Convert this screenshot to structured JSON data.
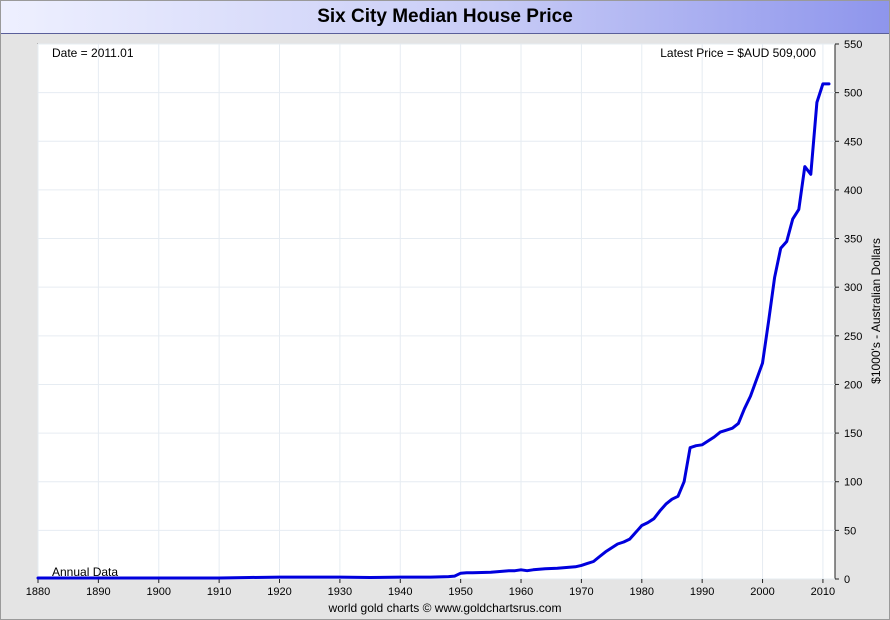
{
  "title": "Six City Median House Price",
  "footer": "world gold charts © www.goldchartsrus.com",
  "chart_data": {
    "type": "line",
    "title": "Six City Median House Price",
    "ylabel": "$1000's - Australian Dollars",
    "xlabel": "",
    "xlim": [
      1880,
      2012
    ],
    "ylim": [
      0,
      550
    ],
    "x_ticks": [
      "1880",
      "1890",
      "1900",
      "1910",
      "1920",
      "1930",
      "1940",
      "1950",
      "1960",
      "1970",
      "1980",
      "1990",
      "2000",
      "2010"
    ],
    "y_ticks": [
      "0",
      "50",
      "100",
      "150",
      "200",
      "250",
      "300",
      "350",
      "400",
      "450",
      "500",
      "550"
    ],
    "annotations": {
      "date": "Date = 2011.01",
      "latest_price": "Latest Price = $AUD 509,000",
      "frequency": "Annual Data"
    },
    "grid": true,
    "line_color": "#0000dd",
    "series": [
      {
        "x": [
          1880,
          1885,
          1890,
          1895,
          1900,
          1905,
          1910,
          1915,
          1920,
          1925,
          1930,
          1935,
          1940,
          1945,
          1948,
          1949,
          1950,
          1951,
          1952,
          1955,
          1957,
          1958,
          1959,
          1960,
          1961,
          1962,
          1963,
          1964,
          1966,
          1968,
          1969,
          1970,
          1971,
          1972,
          1973,
          1974,
          1975,
          1976,
          1977,
          1978,
          1979,
          1980,
          1981,
          1982,
          1983,
          1984,
          1985,
          1986,
          1987,
          1988,
          1989,
          1990,
          1991,
          1992,
          1993,
          1994,
          1995,
          1996,
          1997,
          1998,
          1999,
          2000,
          2001,
          2002,
          2003,
          2004,
          2005,
          2006,
          2007,
          2008,
          2009,
          2010,
          2011
        ],
        "y": [
          1,
          1,
          1,
          1,
          1,
          1,
          1,
          1.5,
          2,
          2,
          2,
          1.5,
          2,
          2,
          2.5,
          3,
          6,
          6.5,
          6.5,
          7,
          8,
          8.5,
          8.5,
          9.5,
          8.5,
          9.5,
          10,
          10.5,
          11,
          12,
          12.5,
          14,
          16,
          18,
          23,
          28,
          32,
          36,
          38,
          41,
          48,
          55,
          58,
          62,
          70,
          77,
          82,
          85,
          100,
          135,
          137,
          138,
          142,
          146,
          151,
          153,
          155,
          160,
          175,
          188,
          205,
          222,
          265,
          310,
          340,
          347,
          370,
          380,
          424,
          416,
          490,
          509,
          509
        ]
      }
    ]
  }
}
